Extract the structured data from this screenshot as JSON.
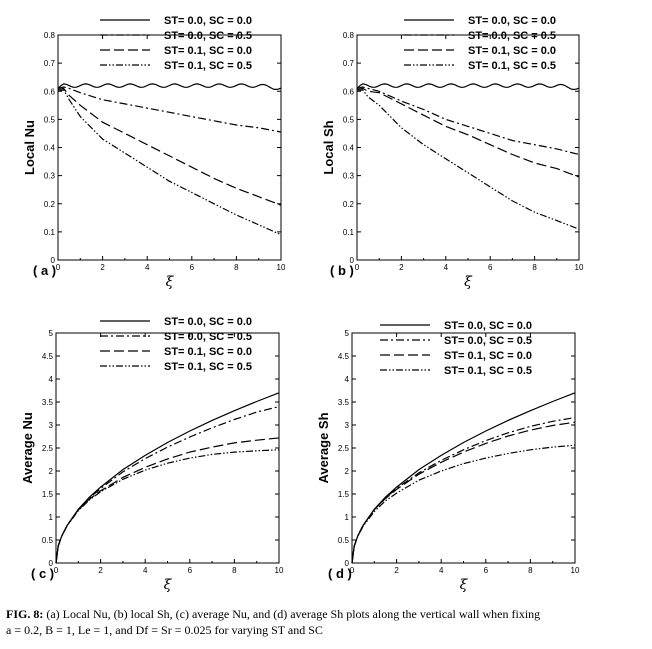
{
  "colors": {
    "line": "#000000",
    "background": "#ffffff"
  },
  "caption": {
    "label": "FIG. 8:",
    "text": "(a) Local Nu, (b) local Sh, (c) average Nu, and (d) average Sh plots along the vertical wall when fixing",
    "line2": "a = 0.2, B = 1, Le = 1, and Df = Sr = 0.025 for varying ST and SC"
  },
  "chart_data": [
    {
      "type": "line",
      "panel_label": "( a )",
      "xlabel": "ξ",
      "ylabel": "Local Nu",
      "xlim": [
        0,
        10
      ],
      "ylim": [
        0,
        0.8
      ],
      "xticks": [
        0,
        2,
        4,
        6,
        8,
        10
      ],
      "yticks": [
        0,
        0.1,
        0.2,
        0.3,
        0.4,
        0.5,
        0.6,
        0.7,
        0.8
      ],
      "legend_position": "top",
      "x": [
        0,
        0.25,
        0.5,
        1,
        2,
        3,
        4,
        5,
        6,
        7,
        8,
        9,
        10
      ],
      "series": [
        {
          "name": "ST= 0.0, SC = 0.0",
          "dash": "solid",
          "wavy": true,
          "values": [
            0.61,
            0.62,
            0.62,
            0.62,
            0.62,
            0.62,
            0.62,
            0.62,
            0.62,
            0.62,
            0.62,
            0.62,
            0.61
          ]
        },
        {
          "name": "ST= 0.0, SC = 0.5",
          "dash": "dashdot",
          "values": [
            0.61,
            0.615,
            0.61,
            0.595,
            0.57,
            0.555,
            0.54,
            0.525,
            0.51,
            0.495,
            0.48,
            0.47,
            0.455
          ]
        },
        {
          "name": "ST= 0.1, SC = 0.0",
          "dash": "dash",
          "values": [
            0.605,
            0.61,
            0.585,
            0.55,
            0.49,
            0.45,
            0.41,
            0.37,
            0.33,
            0.29,
            0.255,
            0.225,
            0.195
          ]
        },
        {
          "name": "ST= 0.1, SC = 0.5",
          "dash": "dashdotdot",
          "values": [
            0.6,
            0.605,
            0.57,
            0.51,
            0.43,
            0.38,
            0.33,
            0.28,
            0.24,
            0.2,
            0.16,
            0.125,
            0.09
          ]
        }
      ]
    },
    {
      "type": "line",
      "panel_label": "( b )",
      "xlabel": "ξ",
      "ylabel": "Local Sh",
      "xlim": [
        0,
        10
      ],
      "ylim": [
        0,
        0.8
      ],
      "xticks": [
        0,
        2,
        4,
        6,
        8,
        10
      ],
      "yticks": [
        0,
        0.1,
        0.2,
        0.3,
        0.4,
        0.5,
        0.6,
        0.7,
        0.8
      ],
      "legend_position": "top",
      "x": [
        0,
        0.25,
        0.5,
        1,
        2,
        3,
        4,
        5,
        6,
        7,
        8,
        9,
        10
      ],
      "series": [
        {
          "name": "ST= 0.0, SC = 0.0",
          "dash": "solid",
          "wavy": true,
          "values": [
            0.61,
            0.62,
            0.62,
            0.62,
            0.62,
            0.62,
            0.62,
            0.62,
            0.62,
            0.62,
            0.62,
            0.62,
            0.61
          ]
        },
        {
          "name": "ST= 0.0, SC = 0.5",
          "dash": "dashdot",
          "values": [
            0.61,
            0.615,
            0.61,
            0.6,
            0.565,
            0.535,
            0.5,
            0.475,
            0.45,
            0.425,
            0.41,
            0.395,
            0.375
          ]
        },
        {
          "name": "ST= 0.1, SC = 0.0",
          "dash": "dash",
          "values": [
            0.605,
            0.61,
            0.6,
            0.595,
            0.555,
            0.515,
            0.475,
            0.445,
            0.41,
            0.375,
            0.345,
            0.325,
            0.295
          ]
        },
        {
          "name": "ST= 0.1, SC = 0.5",
          "dash": "dashdotdot",
          "values": [
            0.6,
            0.605,
            0.58,
            0.55,
            0.47,
            0.41,
            0.36,
            0.31,
            0.26,
            0.21,
            0.17,
            0.14,
            0.11
          ]
        }
      ]
    },
    {
      "type": "line",
      "panel_label": "( c )",
      "xlabel": "ξ",
      "ylabel": "Average Nu",
      "xlim": [
        0,
        10
      ],
      "ylim": [
        0,
        5
      ],
      "xticks": [
        0,
        2,
        4,
        6,
        8,
        10
      ],
      "yticks": [
        0,
        0.5,
        1,
        1.5,
        2,
        2.5,
        3,
        3.5,
        4,
        4.5,
        5
      ],
      "legend_position": "top",
      "x": [
        0,
        0.1,
        0.25,
        0.5,
        1,
        1.5,
        2,
        3,
        4,
        5,
        6,
        7,
        8,
        9,
        10
      ],
      "series": [
        {
          "name": "ST= 0.0, SC = 0.0",
          "dash": "solid",
          "values": [
            0,
            0.37,
            0.58,
            0.82,
            1.17,
            1.43,
            1.65,
            2.03,
            2.34,
            2.62,
            2.87,
            3.1,
            3.31,
            3.51,
            3.7
          ]
        },
        {
          "name": "ST= 0.0, SC = 0.5",
          "dash": "dashdot",
          "values": [
            0,
            0.37,
            0.58,
            0.82,
            1.16,
            1.41,
            1.62,
            1.98,
            2.27,
            2.52,
            2.74,
            2.94,
            3.12,
            3.28,
            3.4
          ]
        },
        {
          "name": "ST= 0.1, SC = 0.0",
          "dash": "dash",
          "values": [
            0,
            0.37,
            0.58,
            0.82,
            1.15,
            1.39,
            1.57,
            1.86,
            2.08,
            2.26,
            2.41,
            2.52,
            2.61,
            2.67,
            2.72
          ]
        },
        {
          "name": "ST= 0.1, SC = 0.5",
          "dash": "dashdotdot",
          "values": [
            0,
            0.37,
            0.58,
            0.81,
            1.14,
            1.37,
            1.55,
            1.82,
            2.02,
            2.17,
            2.28,
            2.36,
            2.41,
            2.44,
            2.46
          ]
        }
      ]
    },
    {
      "type": "line",
      "panel_label": "( d )",
      "xlabel": "ξ",
      "ylabel": "Average Sh",
      "xlim": [
        0,
        10
      ],
      "ylim": [
        0,
        5
      ],
      "xticks": [
        0,
        2,
        4,
        6,
        8,
        10
      ],
      "yticks": [
        0,
        0.5,
        1,
        1.5,
        2,
        2.5,
        3,
        3.5,
        4,
        4.5,
        5
      ],
      "legend_position": "top-right",
      "x": [
        0,
        0.1,
        0.25,
        0.5,
        1,
        1.5,
        2,
        3,
        4,
        5,
        6,
        7,
        8,
        9,
        10
      ],
      "series": [
        {
          "name": "ST= 0.0, SC = 0.0",
          "dash": "solid",
          "values": [
            0,
            0.37,
            0.58,
            0.82,
            1.17,
            1.43,
            1.65,
            2.03,
            2.34,
            2.62,
            2.87,
            3.1,
            3.31,
            3.51,
            3.7
          ]
        },
        {
          "name": "ST= 0.0, SC = 0.5",
          "dash": "dashdot",
          "values": [
            0,
            0.37,
            0.58,
            0.82,
            1.16,
            1.41,
            1.62,
            1.96,
            2.23,
            2.46,
            2.66,
            2.83,
            2.97,
            3.08,
            3.16
          ]
        },
        {
          "name": "ST= 0.1, SC = 0.0",
          "dash": "dash",
          "values": [
            0,
            0.37,
            0.58,
            0.82,
            1.16,
            1.4,
            1.6,
            1.93,
            2.19,
            2.41,
            2.6,
            2.76,
            2.89,
            2.99,
            3.06
          ]
        },
        {
          "name": "ST= 0.1, SC = 0.5",
          "dash": "dashdotdot",
          "values": [
            0,
            0.36,
            0.57,
            0.8,
            1.12,
            1.35,
            1.52,
            1.8,
            2.0,
            2.16,
            2.28,
            2.38,
            2.46,
            2.52,
            2.56
          ]
        }
      ]
    }
  ]
}
